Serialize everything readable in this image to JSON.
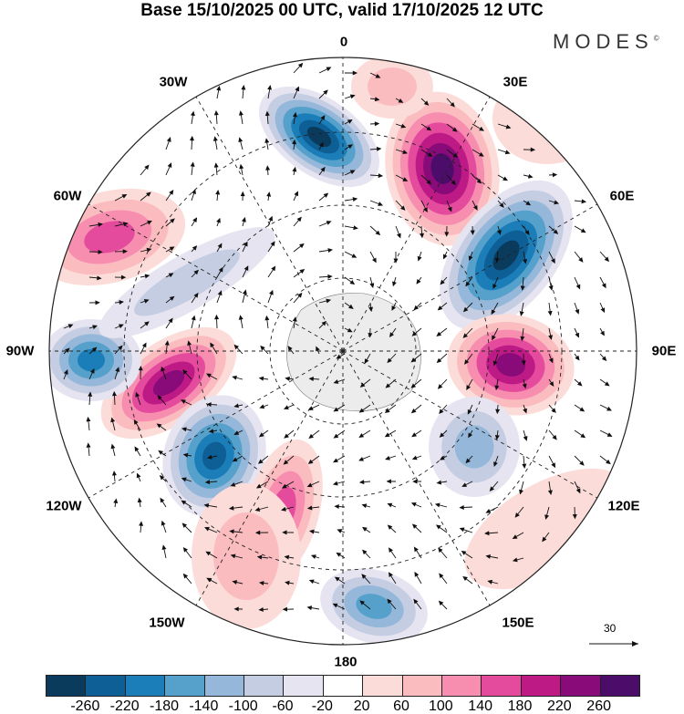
{
  "title": "Base 15/10/2025 00 UTC, valid 17/10/2025 12 UTC",
  "logo": "MODES",
  "logo_mark": "©",
  "lon_labels": {
    "l0": "0",
    "l30e": "30E",
    "l60e": "60E",
    "l90e": "90E",
    "l120e": "120E",
    "l150e": "150E",
    "l180": "180",
    "l150w": "150W",
    "l120w": "120W",
    "l90w": "90W",
    "l60w": "60W",
    "l30w": "30W"
  },
  "vector_scale": "30",
  "colorbar": {
    "colors": [
      "#0b3b5c",
      "#0d5f95",
      "#1b7eb8",
      "#56a1cb",
      "#95b7d9",
      "#c4cde2",
      "#e6e4f0",
      "#ffffff",
      "#fcdcd9",
      "#fbbcc0",
      "#f78eb0",
      "#e54b9d",
      "#bd1a86",
      "#880b79",
      "#4c0d6a"
    ],
    "ticks": [
      "-260",
      "-220",
      "-180",
      "-140",
      "-100",
      "-60",
      "-20",
      "20",
      "60",
      "100",
      "140",
      "180",
      "220",
      "260"
    ]
  }
}
